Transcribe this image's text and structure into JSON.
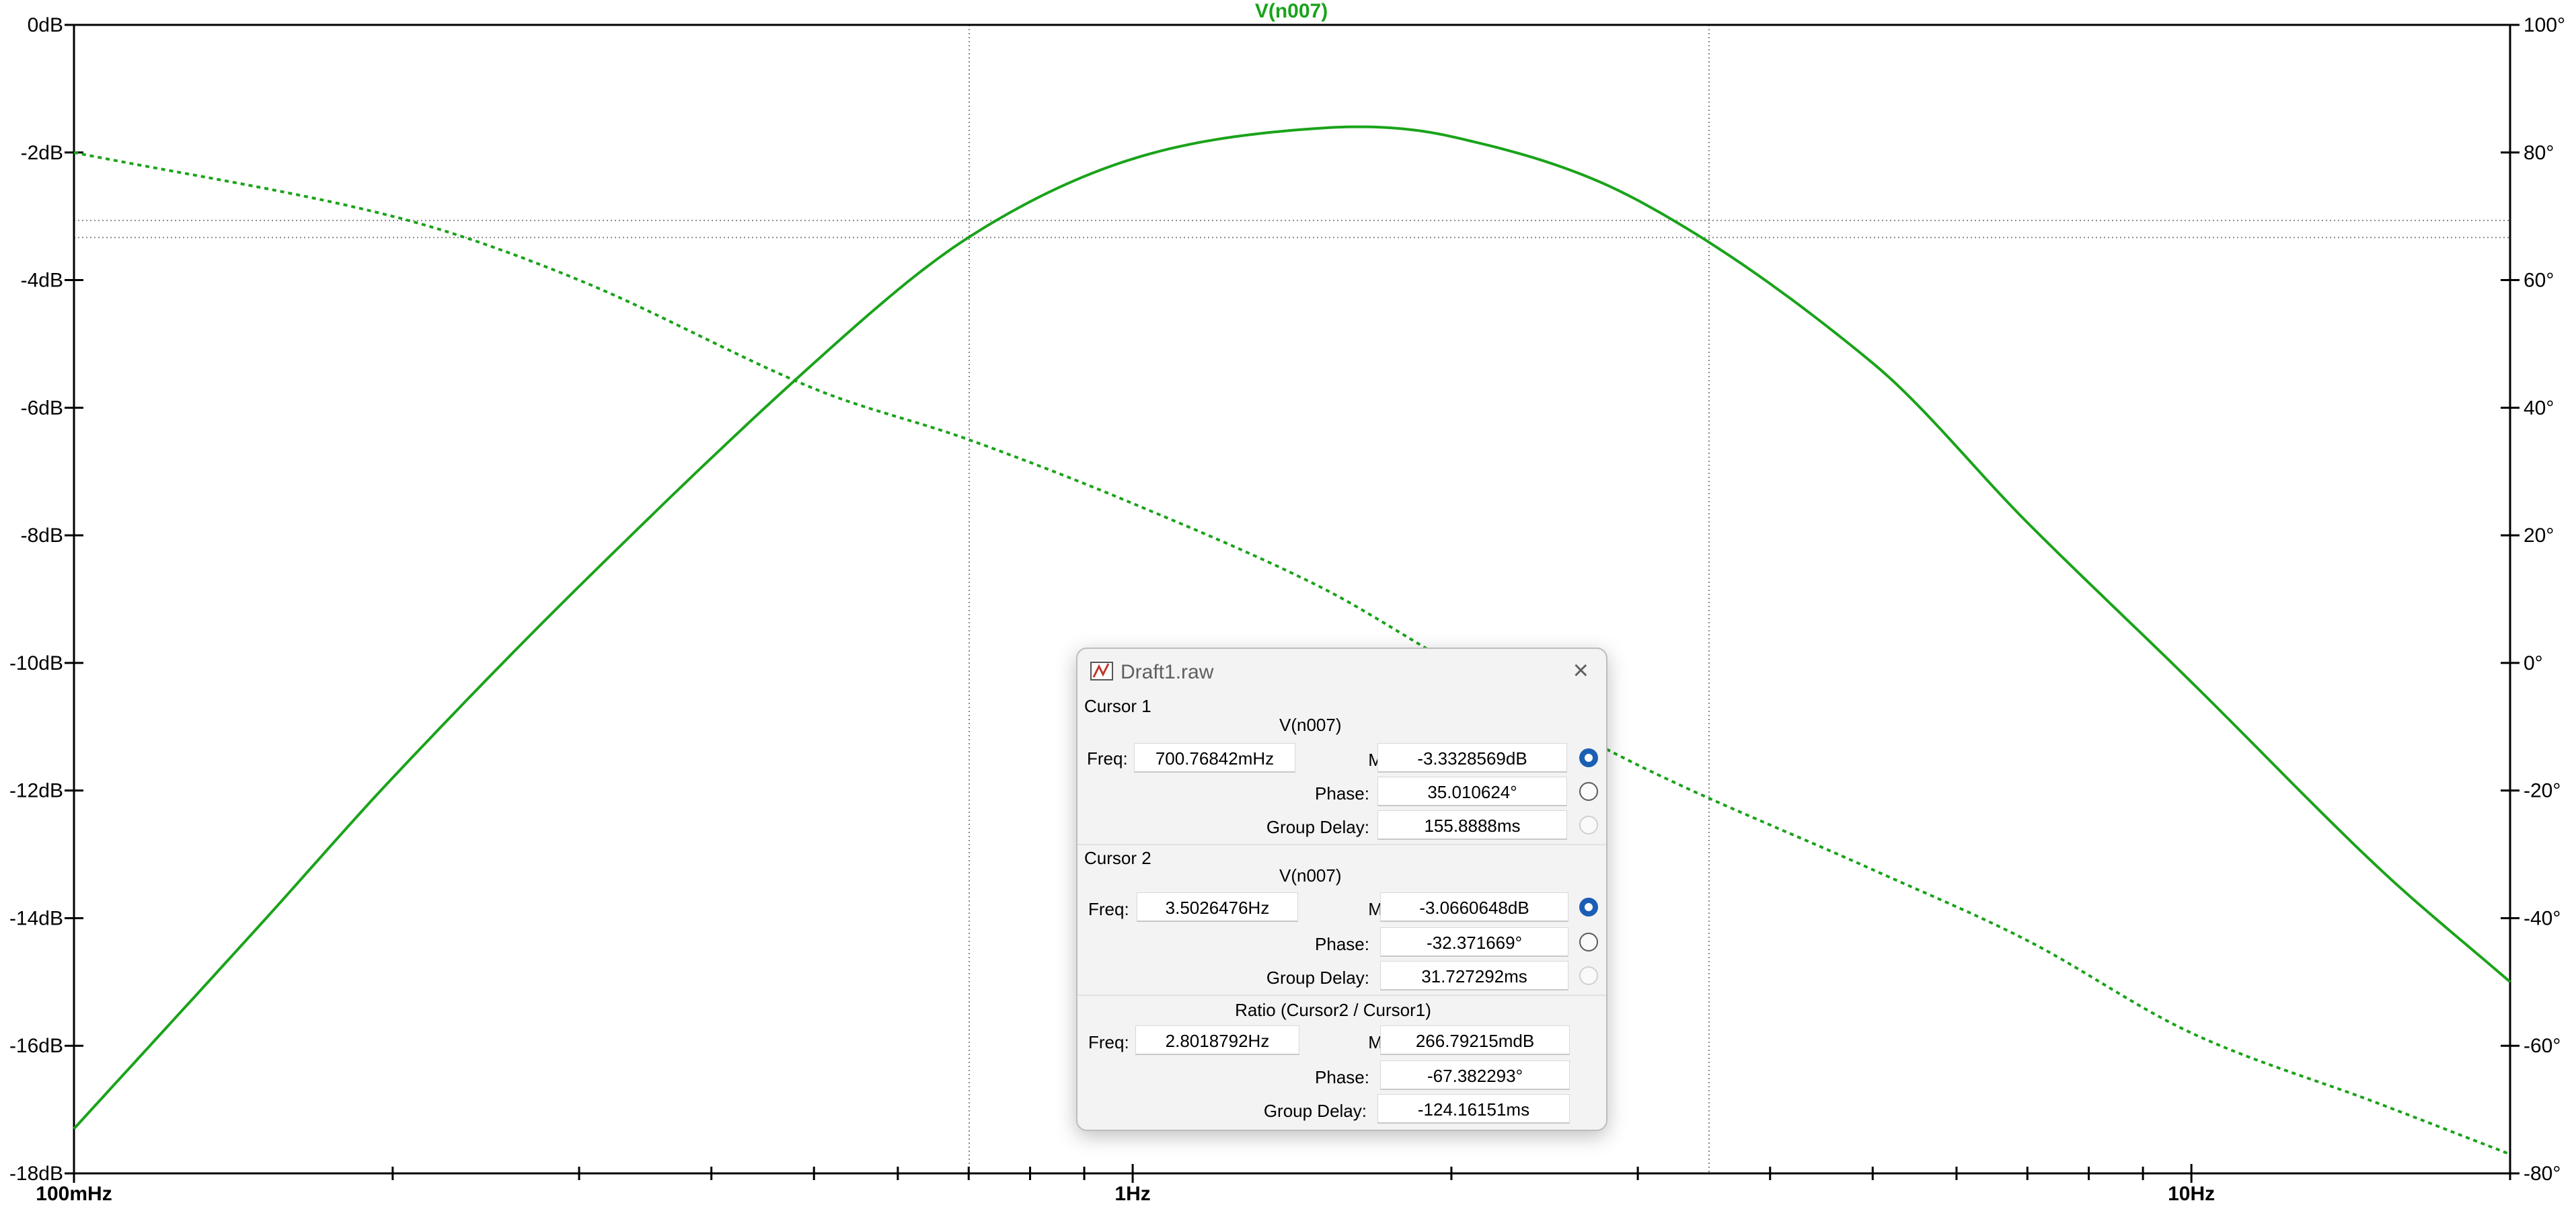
{
  "plot": {
    "trace_title": "V(n007)",
    "y_left_ticks": [
      "0dB",
      "-2dB",
      "-4dB",
      "-6dB",
      "-8dB",
      "-10dB",
      "-12dB",
      "-14dB",
      "-16dB",
      "-18dB"
    ],
    "y_right_ticks": [
      "100°",
      "80°",
      "60°",
      "40°",
      "20°",
      "0°",
      "-20°",
      "-40°",
      "-60°",
      "-80°"
    ],
    "x_ticks": [
      "100mHz",
      "1Hz",
      "10Hz"
    ],
    "colors": {
      "trace": "#1aa31a",
      "axis": "#000000",
      "cursor": "#888888"
    }
  },
  "chart_data": {
    "type": "line",
    "x_scale": "log",
    "xlim_hz": [
      0.1,
      20
    ],
    "ylim_left_db": [
      -18,
      0
    ],
    "ylim_right_deg": [
      -80,
      100
    ],
    "series": [
      {
        "name": "V(n007)",
        "axis": "left",
        "x": [
          0.1,
          0.15,
          0.2,
          0.3,
          0.5,
          0.7,
          1.0,
          1.5,
          2.0,
          3.0,
          5.0,
          7.0,
          10,
          15,
          20
        ],
        "y": [
          -17.3,
          -14.1,
          -11.8,
          -8.8,
          -5.3,
          -3.33,
          -2.1,
          -1.62,
          -1.75,
          -2.75,
          -5.3,
          -7.8,
          -10.3,
          -13.2,
          -15.0
        ]
      },
      {
        "name": "V(n007)",
        "axis": "right",
        "style": "dashed",
        "x": [
          0.1,
          0.2,
          0.3,
          0.5,
          0.7,
          1.0,
          1.5,
          2.0,
          3.0,
          5.0,
          7.0,
          10,
          15,
          20
        ],
        "y": [
          80,
          70,
          60,
          43,
          35,
          25,
          12,
          0,
          -16,
          -32.4,
          -43.5,
          -58,
          -69,
          -77
        ]
      }
    ],
    "cursors": {
      "cursor1_hz": 0.70076842,
      "cursor2_hz": 3.5026476,
      "cursor1_mag_db": -3.3328569,
      "cursor2_mag_db": -3.0660648
    }
  },
  "dialog": {
    "title": "Draft1.raw",
    "close_label": "×",
    "cursor1": {
      "heading": "Cursor 1",
      "trace": "V(n007)",
      "freq_label": "Freq:",
      "freq": "700.76842mHz",
      "mag_label": "Mag:",
      "mag": "-3.3328569dB",
      "phase_label": "Phase:",
      "phase": "35.010624°",
      "gd_label": "Group Delay:",
      "gd": "155.8888ms"
    },
    "cursor2": {
      "heading": "Cursor 2",
      "trace": "V(n007)",
      "freq_label": "Freq:",
      "freq": "3.5026476Hz",
      "mag_label": "Mag:",
      "mag": "-3.0660648dB",
      "phase_label": "Phase:",
      "phase": "-32.371669°",
      "gd_label": "Group Delay:",
      "gd": "31.727292ms"
    },
    "ratio": {
      "heading": "Ratio (Cursor2 / Cursor1)",
      "freq_label": "Freq:",
      "freq": "2.8018792Hz",
      "mag_label": "Mag:",
      "mag": "266.79215mdB",
      "phase_label": "Phase:",
      "phase": "-67.382293°",
      "gd_label": "Group Delay:",
      "gd": "-124.16151ms"
    }
  }
}
